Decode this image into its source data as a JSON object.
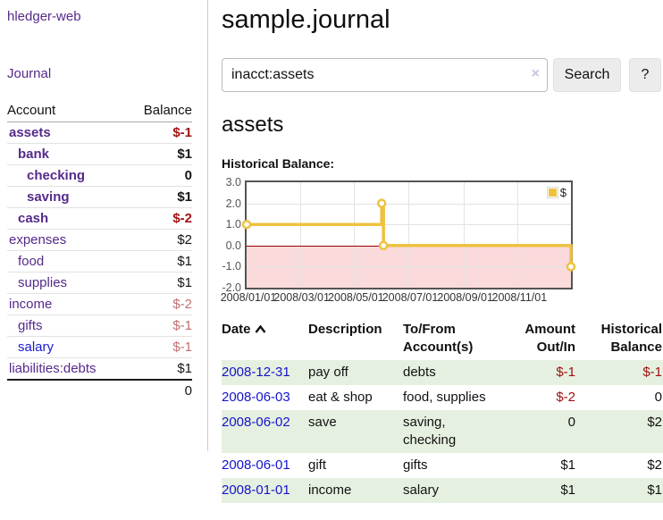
{
  "sidebar": {
    "app_title": "hledger-web",
    "journal_link": "Journal",
    "accounts_table": {
      "headers": {
        "account": "Account",
        "balance": "Balance"
      },
      "rows": [
        {
          "name": "assets",
          "depth": 1,
          "bold": true,
          "balance": "$-1",
          "balance_style": "negstrong"
        },
        {
          "name": "bank",
          "depth": 2,
          "bold": true,
          "balance": "$1",
          "balance_style": "strong"
        },
        {
          "name": "checking",
          "depth": 3,
          "bold": true,
          "balance": "0",
          "balance_style": "strong"
        },
        {
          "name": "saving",
          "depth": 3,
          "bold": true,
          "balance": "$1",
          "balance_style": "strong"
        },
        {
          "name": "cash",
          "depth": 2,
          "bold": true,
          "balance": "$-2",
          "balance_style": "negstrong"
        },
        {
          "name": "expenses",
          "depth": 1,
          "bold": false,
          "balance": "$2",
          "balance_style": "plain"
        },
        {
          "name": "food",
          "depth": 2,
          "bold": false,
          "balance": "$1",
          "balance_style": "plain"
        },
        {
          "name": "supplies",
          "depth": 2,
          "bold": false,
          "balance": "$1",
          "balance_style": "plain"
        },
        {
          "name": "income",
          "depth": 1,
          "bold": false,
          "balance": "$-2",
          "balance_style": "negdim"
        },
        {
          "name": "gifts",
          "depth": 2,
          "bold": false,
          "balance": "$-1",
          "balance_style": "negdim"
        },
        {
          "name": "salary",
          "depth": 2,
          "bold": false,
          "blue": true,
          "balance": "$-1",
          "balance_style": "negdim"
        },
        {
          "name": "liabilities:debts",
          "depth": 1,
          "bold": false,
          "balance": "$1",
          "balance_style": "plain"
        }
      ],
      "total": "0"
    }
  },
  "header": {
    "title": "sample.journal"
  },
  "search": {
    "value": "inacct:assets",
    "clear_icon": "×",
    "button_label": "Search",
    "help_label": "?"
  },
  "account_page": {
    "title": "assets",
    "chart_label": "Historical Balance:"
  },
  "chart_data": {
    "type": "line",
    "subtype": "step-with-markers",
    "title": "Historical Balance:",
    "xlim": [
      "2008-01-01",
      "2008-12-31"
    ],
    "ylim": [
      -2.0,
      3.0
    ],
    "y_ticks": [
      "3.0",
      "2.0",
      "1.0",
      "0.0",
      "-1.0",
      "-2.0"
    ],
    "y_tick_values": [
      3.0,
      2.0,
      1.0,
      0.0,
      -1.0,
      -2.0
    ],
    "x_ticks": [
      {
        "label": "2008/01/01",
        "date": "2008-01-01"
      },
      {
        "label": "2008/03/01",
        "date": "2008-03-01"
      },
      {
        "label": "2008/05/01",
        "date": "2008-05-01"
      },
      {
        "label": "2008/07/01",
        "date": "2008-07-01"
      },
      {
        "label": "2008/09/01",
        "date": "2008-09-01"
      },
      {
        "label": "2008/11/01",
        "date": "2008-11-01"
      }
    ],
    "series": [
      {
        "name": "$",
        "color": "#edc240",
        "points": [
          {
            "date": "2008-01-01",
            "value": 1
          },
          {
            "date": "2008-06-01",
            "value": 2
          },
          {
            "date": "2008-06-03",
            "value": 0
          },
          {
            "date": "2008-12-31",
            "value": -1
          }
        ]
      }
    ],
    "legend_position": "top-right",
    "grid": true,
    "colors": {
      "negative_region": "#fadada",
      "zero_line": "#9b0000",
      "gridline": "#e3e3e3",
      "border": "#545454"
    }
  },
  "register_table": {
    "headers": {
      "date": "Date",
      "description": "Description",
      "accounts": "To/From Account(s)",
      "amount": "Amount Out/In",
      "balance": "Historical Balance"
    },
    "sort": "date-ascending",
    "rows": [
      {
        "date": "2008-12-31",
        "description": "pay off",
        "accounts": "debts",
        "amount": "$-1",
        "amount_negative": true,
        "balance": "$-1",
        "balance_negative": true
      },
      {
        "date": "2008-06-03",
        "description": "eat & shop",
        "accounts": "food, supplies",
        "amount": "$-2",
        "amount_negative": true,
        "balance": "0",
        "balance_negative": false
      },
      {
        "date": "2008-06-02",
        "description": "save",
        "accounts": "saving, checking",
        "amount": "0",
        "amount_negative": false,
        "balance": "$2",
        "balance_negative": false
      },
      {
        "date": "2008-06-01",
        "description": "gift",
        "accounts": "gifts",
        "amount": "$1",
        "amount_negative": false,
        "balance": "$2",
        "balance_negative": false
      },
      {
        "date": "2008-01-01",
        "description": "income",
        "accounts": "salary",
        "amount": "$1",
        "amount_negative": false,
        "balance": "$1",
        "balance_negative": false
      }
    ]
  },
  "colors": {
    "link_purple": "#552a8b",
    "link_blue": "#1414cc",
    "negative_strong": "#a01313",
    "negative_dim": "#bf7070",
    "row_stripe_green": "#e6f0e0",
    "series_gold": "#edc240"
  }
}
